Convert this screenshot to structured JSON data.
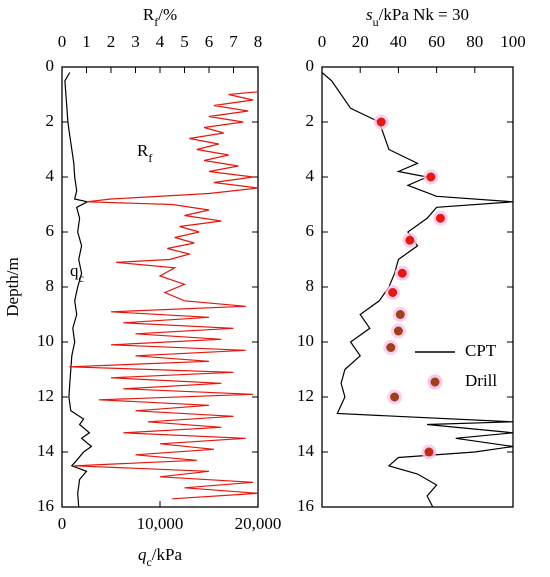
{
  "chart_data": [
    {
      "type": "line",
      "title": {
        "main": "R",
        "sub": "f",
        "rest": "/%"
      },
      "xlabel": {
        "main": "q",
        "sub": "c",
        "rest": "/kPa"
      },
      "ylabel": "Depth/m",
      "ylim": [
        0,
        16
      ],
      "yticks": [
        0,
        2,
        4,
        6,
        8,
        10,
        12,
        14,
        16
      ],
      "y_inverted": true,
      "xlim": [
        0,
        20000
      ],
      "xticks": [
        0,
        {
          "value": 10000,
          "label": "10,000"
        },
        {
          "value": 20000,
          "label": "20,000"
        }
      ],
      "x2lim": [
        0,
        8
      ],
      "x2ticks": [
        0,
        1,
        2,
        3,
        4,
        5,
        6,
        7,
        8
      ],
      "series": [
        {
          "name": {
            "main": "q",
            "sub": "c"
          },
          "color": "#000000",
          "axis": "x",
          "depth": [
            0.2,
            0.5,
            1,
            1.5,
            2,
            2.5,
            3,
            3.5,
            4,
            4.5,
            4.8,
            4.9,
            5.1,
            5.5,
            6,
            6.5,
            7,
            7.5,
            8,
            8.5,
            9,
            9.5,
            10,
            10.5,
            11,
            11.5,
            12,
            12.5,
            12.8,
            13,
            13.3,
            13.5,
            13.8,
            14,
            14.3,
            14.5,
            14.7,
            15,
            15.5,
            16
          ],
          "values": [
            800,
            300,
            400,
            500,
            600,
            800,
            1000,
            1200,
            1300,
            1500,
            1300,
            2600,
            1500,
            1800,
            1600,
            2000,
            1700,
            2000,
            1600,
            1300,
            1500,
            1100,
            1300,
            1000,
            900,
            800,
            700,
            900,
            2200,
            1800,
            2800,
            2000,
            3000,
            2200,
            1500,
            1000,
            2500,
            1800,
            1600,
            1700
          ]
        },
        {
          "name": {
            "main": "R",
            "sub": "f"
          },
          "color": "#e8160c",
          "axis": "x2",
          "depth": [
            0.9,
            1.0,
            1.2,
            1.4,
            1.6,
            1.8,
            2.0,
            2.2,
            2.4,
            2.6,
            2.8,
            3.0,
            3.2,
            3.4,
            3.6,
            3.8,
            4.0,
            4.2,
            4.4,
            4.6,
            4.8,
            4.9,
            5.0,
            5.2,
            5.4,
            5.6,
            5.8,
            6.0,
            6.2,
            6.4,
            6.6,
            6.8,
            7.0,
            7.1,
            7.3,
            7.6,
            7.9,
            8.2,
            8.5,
            8.7,
            8.9,
            9.1,
            9.3,
            9.5,
            9.7,
            9.9,
            10.1,
            10.3,
            10.5,
            10.7,
            10.9,
            11.1,
            11.3,
            11.5,
            11.7,
            11.9,
            12.1,
            12.3,
            12.5,
            12.7,
            12.9,
            13.1,
            13.3,
            13.5,
            13.7,
            13.9,
            14.1,
            14.3,
            14.5,
            14.7,
            14.9,
            15.1,
            15.3,
            15.5,
            15.7
          ],
          "values": [
            8,
            6.8,
            7.8,
            6.2,
            7.6,
            6,
            7.4,
            5.8,
            6.6,
            5.2,
            6.4,
            5.5,
            6.8,
            5.8,
            7.2,
            6,
            7.8,
            6.2,
            8,
            6,
            2,
            1,
            4.5,
            6,
            5,
            6.5,
            4.8,
            5.6,
            4.6,
            5.4,
            4.3,
            5.2,
            4.4,
            2.2,
            4.6,
            4,
            5,
            4.2,
            5,
            7.5,
            2,
            6,
            2.5,
            7,
            3,
            6.5,
            2,
            7.5,
            3,
            6,
            0.3,
            7,
            2,
            6.5,
            2.5,
            7.8,
            1.5,
            6,
            3,
            7,
            3.5,
            6.5,
            2.5,
            7.5,
            4,
            6.2,
            3,
            5.5,
            0.5,
            6,
            4,
            7.8,
            5,
            8,
            4.5
          ]
        }
      ]
    },
    {
      "type": "line",
      "title": {
        "main": "s",
        "sub": "u",
        "rest": "/kPa Nk = 30"
      },
      "ylim": [
        0,
        16
      ],
      "yticks": [
        0,
        2,
        4,
        6,
        8,
        10,
        12,
        14,
        16
      ],
      "y_inverted": true,
      "x2lim": [
        0,
        100
      ],
      "x2ticks": [
        0,
        20,
        40,
        60,
        80,
        100
      ],
      "legend": "right",
      "series": [
        {
          "name": "CPT",
          "color": "#000000",
          "axis": "x2",
          "depth": [
            0.2,
            0.5,
            1,
            1.5,
            2,
            3,
            3.5,
            3.8,
            4,
            4.3,
            4.7,
            4.9,
            5.1,
            5.5,
            6,
            6.5,
            7,
            7.5,
            8,
            8.5,
            9,
            9.5,
            10,
            10.5,
            11,
            11.5,
            12,
            12.6,
            12.9,
            13,
            13.3,
            13.5,
            13.8,
            14,
            14.2,
            14.5,
            14.8,
            15.2,
            15.6,
            16
          ],
          "values": [
            0,
            5,
            10,
            15,
            30,
            35,
            50,
            40,
            55,
            45,
            60,
            100,
            60,
            55,
            45,
            50,
            40,
            38,
            35,
            30,
            20,
            25,
            15,
            20,
            12,
            10,
            12,
            8,
            100,
            55,
            100,
            70,
            100,
            80,
            40,
            35,
            50,
            60,
            55,
            58
          ]
        },
        {
          "name": "Drill",
          "type": "scatter",
          "color": "#a0401a",
          "axis": "x2",
          "colors": [
            "#e8160c",
            "#e8160c",
            "#e8160c",
            "#e8160c",
            "#e8160c",
            "#e8160c",
            "#a0401a",
            "#a0401a",
            "#a0401a",
            "#a0401a",
            "#c02a14"
          ],
          "depth": [
            2,
            4,
            5.5,
            6.3,
            7.5,
            8.2,
            9,
            9.6,
            10.2,
            12,
            14
          ],
          "values": [
            31,
            57,
            62,
            46,
            42,
            37,
            41,
            40,
            36,
            38,
            56
          ]
        }
      ]
    }
  ]
}
